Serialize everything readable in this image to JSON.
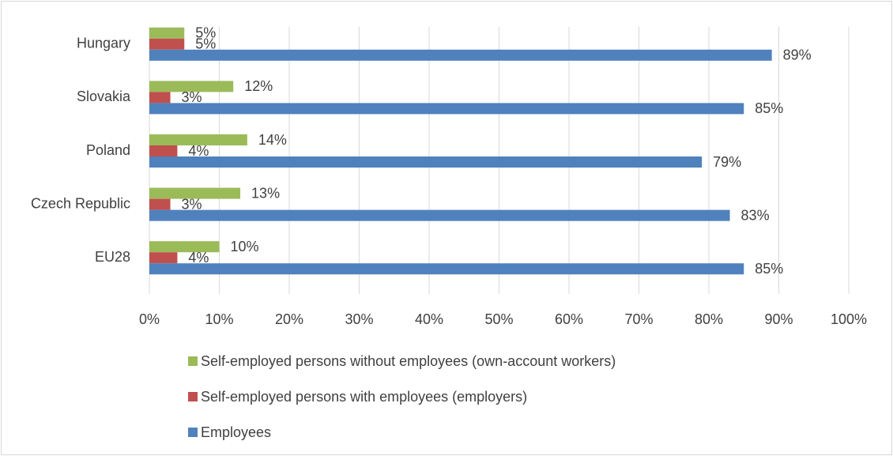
{
  "chart_data": {
    "type": "bar",
    "orientation": "horizontal",
    "categories": [
      "Hungary",
      "Slovakia",
      "Poland",
      "Czech Republic",
      "EU28"
    ],
    "series": [
      {
        "name": "Self-employed persons without employees (own-account workers)",
        "color": "#9bbb59",
        "values": [
          5,
          12,
          14,
          13,
          10
        ],
        "labels": [
          "5%",
          "12%",
          "14%",
          "13%",
          "10%"
        ]
      },
      {
        "name": "Self-employed persons with employees (employers)",
        "color": "#c0504d",
        "values": [
          5,
          3,
          4,
          3,
          4
        ],
        "labels": [
          "5%",
          "3%",
          "4%",
          "3%",
          "4%"
        ]
      },
      {
        "name": "Employees",
        "color": "#4f81bd",
        "values": [
          89,
          85,
          79,
          83,
          85
        ],
        "labels": [
          "89%",
          "85%",
          "79%",
          "83%",
          "85%"
        ]
      }
    ],
    "xlim": [
      0,
      100
    ],
    "x_ticks": [
      0,
      10,
      20,
      30,
      40,
      50,
      60,
      70,
      80,
      90,
      100
    ],
    "x_tick_labels": [
      "0%",
      "10%",
      "20%",
      "30%",
      "40%",
      "50%",
      "60%",
      "70%",
      "80%",
      "90%",
      "100%"
    ],
    "grid": true,
    "legend_position": "bottom"
  }
}
